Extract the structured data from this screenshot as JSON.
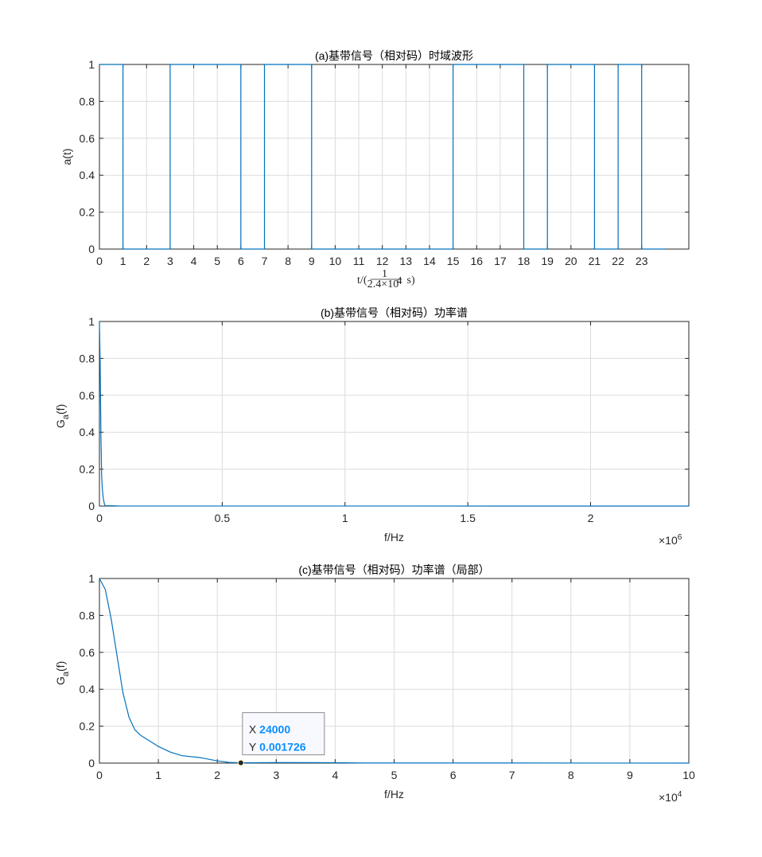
{
  "chart_data": [
    {
      "type": "line",
      "title": "(a)基带信号（相对码）时域波形",
      "xlabel": "t/(1/(2.4×10^4) s)",
      "xlabel_parts": {
        "prefix": "t/(",
        "num": "1",
        "den": "2.4×10",
        "den_exp": "4",
        "suffix": "s)"
      },
      "ylabel": "a(t)",
      "xlim": [
        0,
        25
      ],
      "ylim": [
        0,
        1
      ],
      "xticks": [
        "0",
        "1",
        "2",
        "3",
        "4",
        "5",
        "6",
        "7",
        "8",
        "9",
        "10",
        "11",
        "12",
        "13",
        "14",
        "15",
        "16",
        "17",
        "18",
        "19",
        "20",
        "21",
        "22",
        "23"
      ],
      "yticks": [
        "0",
        "0.2",
        "0.4",
        "0.6",
        "0.8",
        "1"
      ],
      "grid": true,
      "bits": [
        1,
        0,
        0,
        1,
        1,
        1,
        0,
        1,
        1,
        0,
        0,
        0,
        0,
        0,
        0,
        1,
        1,
        1,
        0,
        1,
        1,
        0,
        1,
        0
      ]
    },
    {
      "type": "line",
      "title": "(b)基带信号（相对码）功率谱",
      "xlabel": "f/Hz",
      "ylabel": "G",
      "ylabel_sub": "a",
      "ylabel_suffix": "(f)",
      "xlim": [
        0,
        2400000
      ],
      "ylim": [
        0,
        1
      ],
      "xticks": [
        "0",
        "0.5",
        "1",
        "1.5",
        "2"
      ],
      "xtick_values": [
        0,
        500000,
        1000000,
        1500000,
        2000000
      ],
      "x_exponent_label": "×10",
      "x_exponent": "6",
      "yticks": [
        "0",
        "0.2",
        "0.4",
        "0.6",
        "0.8",
        "1"
      ],
      "grid": true,
      "x": [
        0,
        3000,
        6000,
        9000,
        12000,
        16000,
        20000,
        24000,
        40000,
        80000,
        2400000
      ],
      "y": [
        1,
        0.78,
        0.38,
        0.16,
        0.09,
        0.04,
        0.012,
        0.0017,
        0.002,
        0.0005,
        0
      ]
    },
    {
      "type": "line",
      "title": "(c)基带信号（相对码）功率谱（局部）",
      "xlabel": "f/Hz",
      "ylabel": "G",
      "ylabel_sub": "a",
      "ylabel_suffix": "(f)",
      "xlim": [
        0,
        100000
      ],
      "ylim": [
        0,
        1
      ],
      "xticks": [
        "0",
        "1",
        "2",
        "3",
        "4",
        "5",
        "6",
        "7",
        "8",
        "9",
        "10"
      ],
      "xtick_values": [
        0,
        10000,
        20000,
        30000,
        40000,
        50000,
        60000,
        70000,
        80000,
        90000,
        100000
      ],
      "x_exponent_label": "×10",
      "x_exponent": "4",
      "yticks": [
        "0",
        "0.2",
        "0.4",
        "0.6",
        "0.8",
        "1"
      ],
      "grid": true,
      "x": [
        0,
        1000,
        2000,
        3000,
        4000,
        5000,
        6000,
        7000,
        8000,
        10000,
        12000,
        14000,
        17000,
        20000,
        22000,
        24000,
        30000,
        40000,
        45000,
        50000,
        70000,
        100000
      ],
      "y": [
        1,
        0.94,
        0.78,
        0.58,
        0.38,
        0.25,
        0.18,
        0.15,
        0.13,
        0.09,
        0.06,
        0.04,
        0.03,
        0.012,
        0.004,
        0.001726,
        0.003,
        0.002,
        0.0005,
        0.0005,
        0.0003,
        0
      ],
      "datatip": {
        "x_label": "X",
        "x_value": "24000",
        "y_label": "Y",
        "y_value": "0.001726",
        "x": 24000,
        "y": 0.001726
      }
    }
  ]
}
